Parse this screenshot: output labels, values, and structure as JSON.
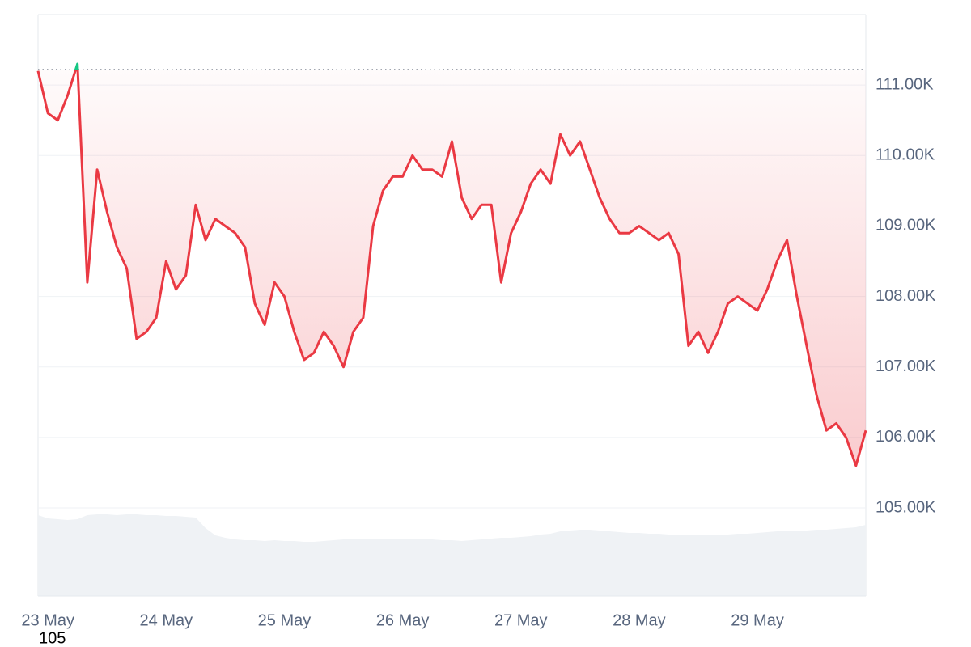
{
  "chart_data": {
    "type": "line",
    "categories": [
      null,
      "23 May",
      null,
      null,
      null,
      null,
      null,
      null,
      null,
      null,
      null,
      null,
      null,
      "24 May",
      null,
      null,
      null,
      null,
      null,
      null,
      null,
      null,
      null,
      null,
      null,
      "25 May",
      null,
      null,
      null,
      null,
      null,
      null,
      null,
      null,
      null,
      null,
      null,
      "26 May",
      null,
      null,
      null,
      null,
      null,
      null,
      null,
      null,
      null,
      null,
      null,
      "27 May",
      null,
      null,
      null,
      null,
      null,
      null,
      null,
      null,
      null,
      null,
      null,
      "28 May",
      null,
      null,
      null,
      null,
      null,
      null,
      null,
      null,
      null,
      null,
      null,
      "29 May",
      null,
      null,
      null,
      null,
      null,
      null,
      null,
      null,
      null,
      null,
      null
    ],
    "values": [
      111200,
      110600,
      110500,
      110850,
      111300,
      108200,
      109800,
      109200,
      108700,
      108400,
      107400,
      107500,
      107700,
      108500,
      108100,
      108300,
      109300,
      108800,
      109100,
      109000,
      108900,
      108700,
      107900,
      107600,
      108200,
      108000,
      107500,
      107100,
      107200,
      107500,
      107300,
      107000,
      107500,
      107700,
      109000,
      109500,
      109700,
      109700,
      110000,
      109800,
      109800,
      109700,
      110200,
      109400,
      109100,
      109300,
      109300,
      108200,
      108900,
      109200,
      109600,
      109800,
      109600,
      110300,
      110000,
      110200,
      109800,
      109400,
      109100,
      108900,
      108900,
      109000,
      108900,
      108800,
      108900,
      108600,
      107300,
      107500,
      107200,
      107500,
      107900,
      108000,
      107900,
      107800,
      108100,
      108500,
      108800,
      108000,
      107300,
      106600,
      106100,
      106200,
      106000,
      105600,
      106100
    ],
    "volume": [
      100,
      96,
      95,
      94,
      95,
      100,
      101,
      101,
      100,
      101,
      101,
      100,
      100,
      99,
      99,
      98,
      97,
      84,
      75,
      72,
      70,
      69,
      69,
      68,
      69,
      68,
      68,
      67,
      67,
      68,
      69,
      70,
      70,
      71,
      71,
      70,
      70,
      70,
      71,
      71,
      70,
      69,
      69,
      68,
      69,
      70,
      71,
      72,
      72,
      73,
      74,
      76,
      77,
      80,
      81,
      82,
      82,
      81,
      80,
      79,
      78,
      78,
      77,
      77,
      76,
      76,
      75,
      75,
      75,
      76,
      76,
      77,
      77,
      78,
      79,
      80,
      80,
      81,
      81,
      82,
      82,
      83,
      84,
      85,
      88
    ],
    "reference_line": 111220,
    "up_color": "#16c784",
    "down_color": "#ea3943",
    "volume_color": "#eff2f5",
    "ylim": [
      103750,
      112000
    ],
    "yticks": [
      {
        "value": 105000,
        "label": "105.00K"
      },
      {
        "value": 106000,
        "label": "106.00K"
      },
      {
        "value": 107000,
        "label": "107.00K"
      },
      {
        "value": 108000,
        "label": "108.00K"
      },
      {
        "value": 109000,
        "label": "109.00K"
      },
      {
        "value": 110000,
        "label": "110.00K"
      },
      {
        "value": 111000,
        "label": "111.00K"
      }
    ],
    "grid": true,
    "footer_label": "105"
  }
}
